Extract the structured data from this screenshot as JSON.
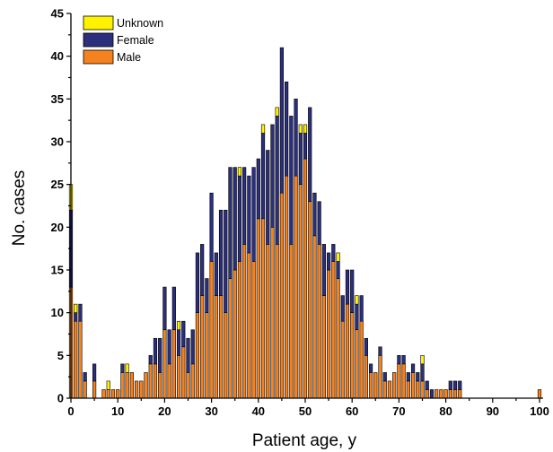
{
  "chart_data": {
    "type": "bar",
    "stacked": true,
    "xlabel": "Patient age, y",
    "ylabel": "No. cases",
    "xlim": [
      0,
      100
    ],
    "ylim": [
      0,
      45
    ],
    "x_ticks": [
      0,
      10,
      20,
      30,
      40,
      50,
      60,
      70,
      80,
      90,
      100
    ],
    "y_ticks": [
      0,
      5,
      10,
      15,
      20,
      25,
      30,
      35,
      40,
      45
    ],
    "legend_position": "top-left",
    "legend_order": [
      "Unknown",
      "Female",
      "Male"
    ],
    "x": [
      0,
      1,
      2,
      3,
      4,
      5,
      6,
      7,
      8,
      9,
      10,
      11,
      12,
      13,
      14,
      15,
      16,
      17,
      18,
      19,
      20,
      21,
      22,
      23,
      24,
      25,
      26,
      27,
      28,
      29,
      30,
      31,
      32,
      33,
      34,
      35,
      36,
      37,
      38,
      39,
      40,
      41,
      42,
      43,
      44,
      45,
      46,
      47,
      48,
      49,
      50,
      51,
      52,
      53,
      54,
      55,
      56,
      57,
      58,
      59,
      60,
      61,
      62,
      63,
      64,
      65,
      66,
      67,
      68,
      69,
      70,
      71,
      72,
      73,
      74,
      75,
      76,
      77,
      78,
      79,
      80,
      81,
      82,
      83,
      84,
      85,
      86,
      87,
      88,
      89,
      90,
      91,
      92,
      93,
      94,
      95,
      96,
      97,
      98,
      99,
      100
    ],
    "series": [
      {
        "name": "Male",
        "color": "#F5821F",
        "values": [
          13,
          9,
          9,
          2,
          0,
          2,
          0,
          1,
          1,
          1,
          1,
          3,
          3,
          3,
          2,
          2,
          3,
          4,
          4,
          3,
          8,
          4,
          8,
          5,
          6,
          3,
          4,
          10,
          12,
          10,
          16,
          12,
          12,
          10,
          14,
          15,
          16,
          18,
          17,
          16,
          21,
          21,
          18,
          20,
          18,
          24,
          26,
          18,
          26,
          25,
          28,
          23,
          19,
          18,
          12,
          15,
          16,
          14,
          9,
          11,
          10,
          8,
          9,
          5,
          3,
          3,
          5,
          2,
          2,
          3,
          4,
          4,
          2,
          3,
          2,
          2,
          1,
          0,
          1,
          1,
          1,
          1,
          1,
          1,
          0,
          0,
          0,
          0,
          0,
          0,
          0,
          0,
          0,
          0,
          0,
          0,
          0,
          0,
          0,
          0,
          1
        ]
      },
      {
        "name": "Female",
        "color": "#2B2F7C",
        "values": [
          9,
          1,
          2,
          1,
          0,
          2,
          0,
          0,
          0,
          0,
          0,
          1,
          0,
          0,
          0,
          0,
          0,
          1,
          3,
          4,
          5,
          4,
          5,
          3,
          3,
          4,
          4,
          7,
          6,
          4,
          8,
          5,
          10,
          12,
          13,
          12,
          10,
          9,
          9,
          11,
          7,
          10,
          11,
          12,
          15,
          17,
          11,
          15,
          9,
          6,
          3,
          11,
          5,
          5,
          6,
          2,
          2,
          2,
          3,
          4,
          5,
          3,
          3,
          2,
          1,
          0,
          1,
          1,
          0,
          0,
          1,
          1,
          1,
          1,
          1,
          2,
          1,
          1,
          0,
          0,
          0,
          1,
          1,
          1,
          0,
          0,
          0,
          0,
          0,
          0,
          0,
          0,
          0,
          0,
          0,
          0,
          0,
          0,
          0,
          0,
          0
        ]
      },
      {
        "name": "Unknown",
        "color": "#FFF200",
        "values": [
          3,
          1,
          0,
          0,
          0,
          0,
          0,
          0,
          1,
          0,
          0,
          0,
          1,
          0,
          0,
          0,
          0,
          0,
          0,
          0,
          0,
          0,
          0,
          1,
          0,
          0,
          0,
          0,
          0,
          0,
          0,
          0,
          0,
          0,
          0,
          0,
          1,
          0,
          0,
          0,
          0,
          1,
          0,
          0,
          1,
          0,
          0,
          0,
          0,
          1,
          1,
          0,
          0,
          0,
          0,
          0,
          0,
          1,
          0,
          0,
          0,
          1,
          0,
          0,
          0,
          0,
          0,
          0,
          0,
          0,
          0,
          0,
          0,
          0,
          0,
          1,
          0,
          0,
          0,
          0,
          0,
          0,
          0,
          0,
          0,
          0,
          0,
          0,
          0,
          0,
          0,
          0,
          0,
          0,
          0,
          0,
          0,
          0,
          0,
          0,
          0
        ]
      }
    ]
  }
}
